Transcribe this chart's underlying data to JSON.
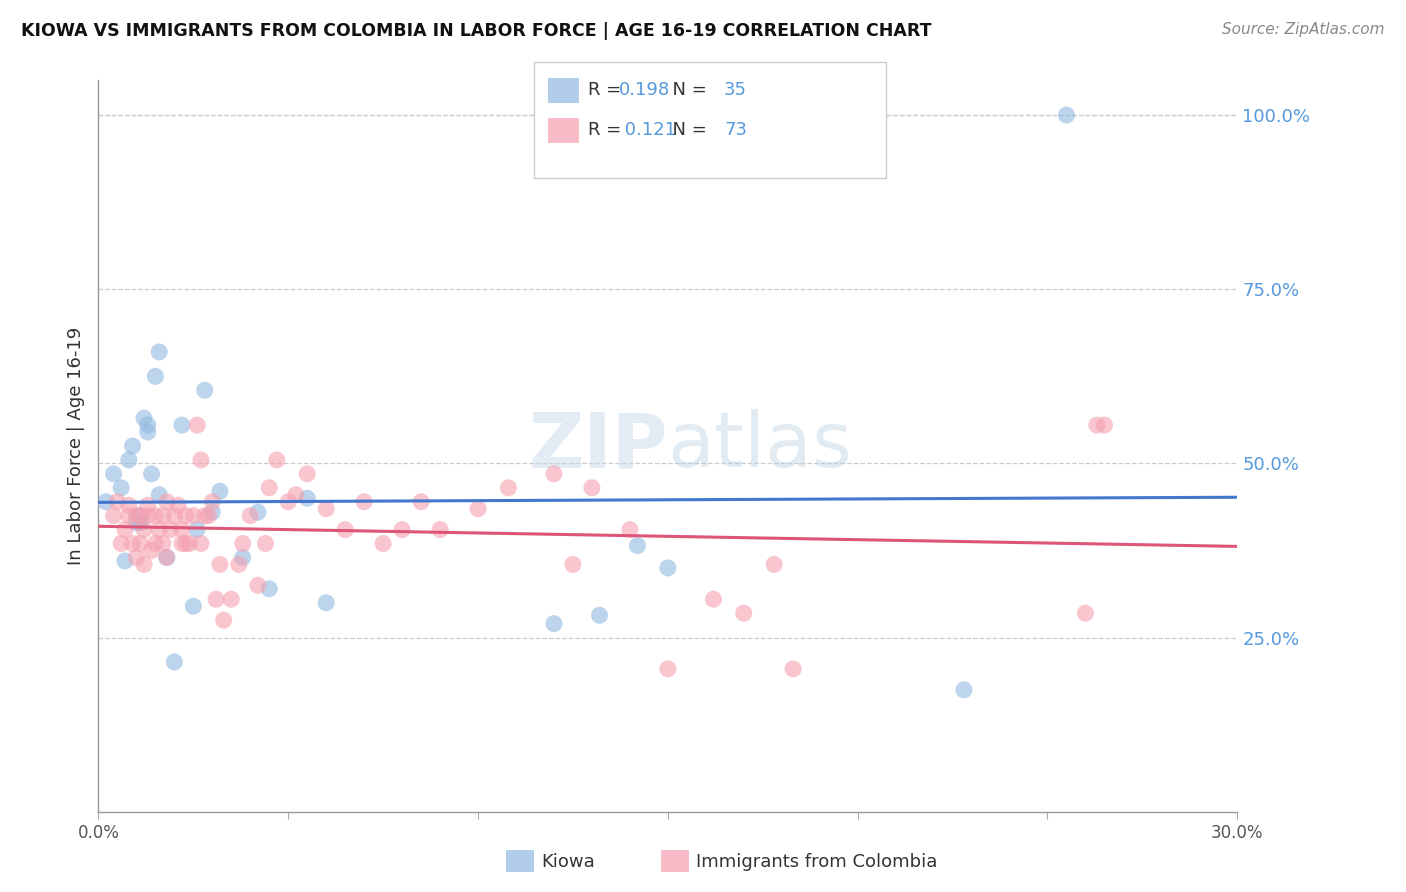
{
  "title": "KIOWA VS IMMIGRANTS FROM COLOMBIA IN LABOR FORCE | AGE 16-19 CORRELATION CHART",
  "source": "Source: ZipAtlas.com",
  "ylabel": "In Labor Force | Age 16-19",
  "xlim": [
    0.0,
    0.3
  ],
  "ylim": [
    -0.02,
    1.1
  ],
  "plot_ylim": [
    0.0,
    1.05
  ],
  "yticks": [
    0.25,
    0.5,
    0.75,
    1.0
  ],
  "ytick_labels": [
    "25.0%",
    "50.0%",
    "75.0%",
    "100.0%"
  ],
  "xticks": [
    0.0,
    0.05,
    0.1,
    0.15,
    0.2,
    0.25,
    0.3
  ],
  "xtick_labels": [
    "0.0%",
    "",
    "",
    "",
    "",
    "",
    "30.0%"
  ],
  "kiowa_color": "#90b8e0",
  "colombia_color": "#f5a0b0",
  "trendline_kiowa_color": "#4477cc",
  "trendline_colombia_color": "#dd5577",
  "right_axis_color": "#5599dd",
  "kiowa_R": 0.198,
  "kiowa_N": 35,
  "colombia_R": 0.121,
  "colombia_N": 73,
  "watermark": "ZIPatlas",
  "kiowa_x": [
    0.002,
    0.004,
    0.006,
    0.007,
    0.008,
    0.009,
    0.01,
    0.011,
    0.011,
    0.012,
    0.013,
    0.013,
    0.014,
    0.015,
    0.016,
    0.016,
    0.018,
    0.02,
    0.022,
    0.025,
    0.026,
    0.028,
    0.03,
    0.032,
    0.038,
    0.042,
    0.045,
    0.055,
    0.06,
    0.12,
    0.132,
    0.142,
    0.15,
    0.228,
    0.255
  ],
  "kiowa_y": [
    0.445,
    0.485,
    0.465,
    0.36,
    0.505,
    0.525,
    0.415,
    0.425,
    0.415,
    0.565,
    0.555,
    0.545,
    0.485,
    0.625,
    0.66,
    0.455,
    0.365,
    0.215,
    0.555,
    0.295,
    0.405,
    0.605,
    0.43,
    0.46,
    0.365,
    0.43,
    0.32,
    0.45,
    0.3,
    0.27,
    0.282,
    0.382,
    0.35,
    0.175,
    1.0
  ],
  "colombia_x": [
    0.004,
    0.005,
    0.006,
    0.007,
    0.008,
    0.008,
    0.009,
    0.01,
    0.01,
    0.011,
    0.011,
    0.012,
    0.012,
    0.013,
    0.013,
    0.014,
    0.015,
    0.015,
    0.016,
    0.017,
    0.017,
    0.018,
    0.018,
    0.019,
    0.02,
    0.021,
    0.022,
    0.022,
    0.023,
    0.023,
    0.024,
    0.025,
    0.026,
    0.027,
    0.027,
    0.028,
    0.029,
    0.03,
    0.031,
    0.032,
    0.033,
    0.035,
    0.037,
    0.038,
    0.04,
    0.042,
    0.044,
    0.045,
    0.047,
    0.05,
    0.052,
    0.055,
    0.06,
    0.065,
    0.07,
    0.075,
    0.08,
    0.085,
    0.09,
    0.1,
    0.108,
    0.12,
    0.125,
    0.13,
    0.14,
    0.15,
    0.162,
    0.17,
    0.178,
    0.183,
    0.26,
    0.263,
    0.265
  ],
  "colombia_y": [
    0.425,
    0.445,
    0.385,
    0.405,
    0.425,
    0.44,
    0.385,
    0.425,
    0.365,
    0.425,
    0.385,
    0.405,
    0.355,
    0.425,
    0.44,
    0.375,
    0.425,
    0.385,
    0.405,
    0.385,
    0.425,
    0.365,
    0.445,
    0.405,
    0.425,
    0.44,
    0.405,
    0.385,
    0.425,
    0.385,
    0.385,
    0.425,
    0.555,
    0.505,
    0.385,
    0.425,
    0.425,
    0.445,
    0.305,
    0.355,
    0.275,
    0.305,
    0.355,
    0.385,
    0.425,
    0.325,
    0.385,
    0.465,
    0.505,
    0.445,
    0.455,
    0.485,
    0.435,
    0.405,
    0.445,
    0.385,
    0.405,
    0.445,
    0.405,
    0.435,
    0.465,
    0.485,
    0.355,
    0.465,
    0.405,
    0.205,
    0.305,
    0.285,
    0.355,
    0.205,
    0.285,
    0.555,
    0.555
  ],
  "legend_kiowa_R_color": "#3366bb",
  "legend_kiowa_N_color": "#3366bb",
  "legend_colombia_R_color": "#3366bb",
  "legend_colombia_N_color": "#3366bb",
  "legend_R_label_color": "#333333",
  "legend_N_value_color": "#ee4444"
}
